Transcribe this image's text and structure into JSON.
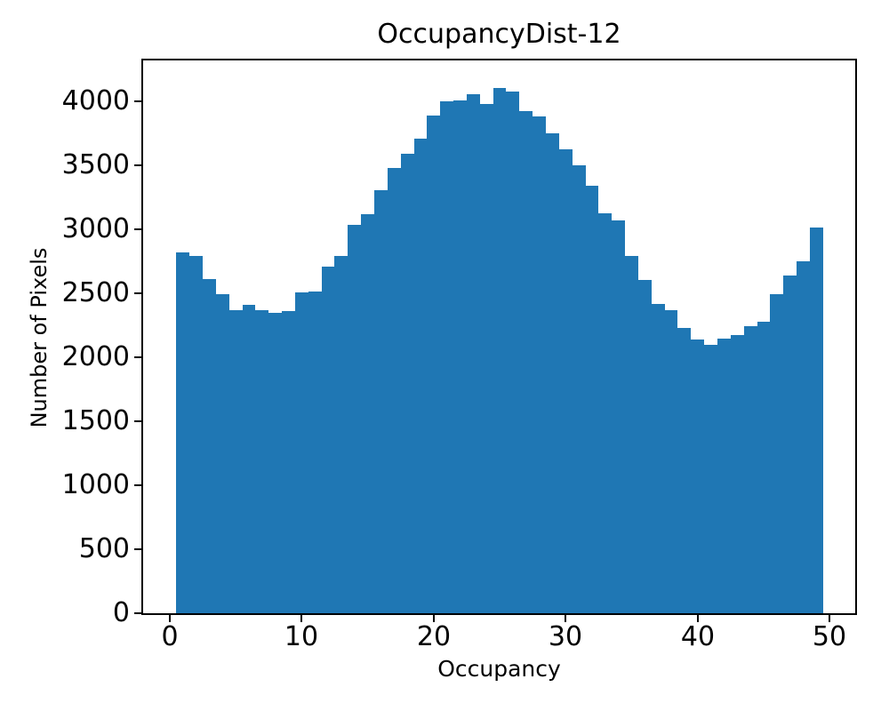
{
  "chart_data": {
    "type": "bar",
    "subtype": "histogram",
    "title": "OccupancyDist-12",
    "xlabel": "Occupancy",
    "ylabel": "Number of Pixels",
    "bar_color": "#1f77b4",
    "bin_start": 0.5,
    "bin_width": 1,
    "bin_centers": [
      1,
      2,
      3,
      4,
      5,
      6,
      7,
      8,
      9,
      10,
      11,
      12,
      13,
      14,
      15,
      16,
      17,
      18,
      19,
      20,
      21,
      22,
      23,
      24,
      25,
      26,
      27,
      28,
      29,
      30,
      31,
      32,
      33,
      34,
      35,
      36,
      37,
      38,
      39,
      40,
      41,
      42,
      43,
      44,
      45,
      46,
      47,
      48,
      49
    ],
    "values": [
      2815,
      2790,
      2610,
      2495,
      2365,
      2410,
      2365,
      2345,
      2360,
      2505,
      2515,
      2705,
      2790,
      3035,
      3115,
      3305,
      3475,
      3590,
      3705,
      3890,
      4000,
      4005,
      4050,
      3980,
      4100,
      4075,
      3920,
      3880,
      3745,
      3620,
      3500,
      3335,
      3120,
      3070,
      2790,
      2600,
      2415,
      2365,
      2230,
      2135,
      2095,
      2145,
      2175,
      2240,
      2275,
      2490,
      2640,
      2750,
      3015
    ],
    "xticks": [
      0,
      10,
      20,
      30,
      40,
      50
    ],
    "yticks": [
      0,
      500,
      1000,
      1500,
      2000,
      2500,
      3000,
      3500,
      4000
    ],
    "xlim": [
      -2.01,
      51.94
    ],
    "ylim": [
      0,
      4317
    ],
    "grid": false,
    "legend_position": "none"
  }
}
